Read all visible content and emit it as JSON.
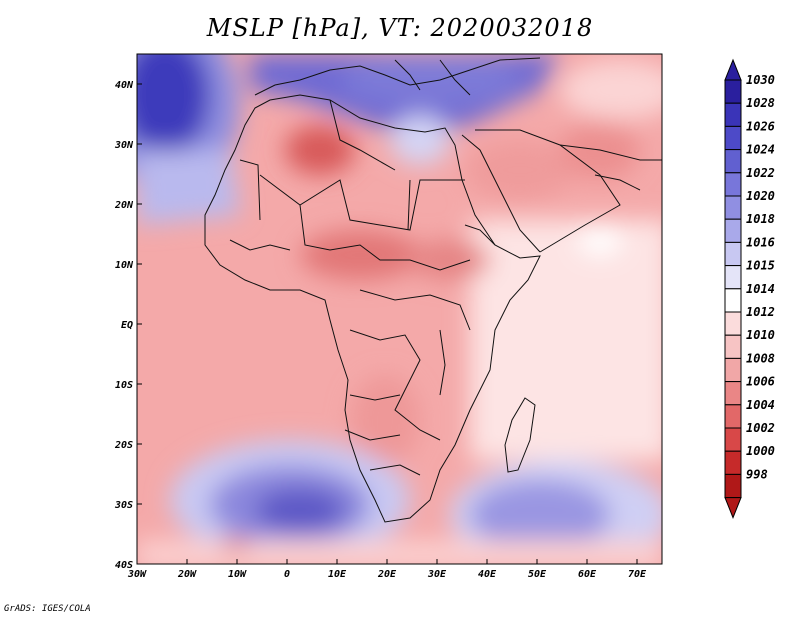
{
  "title": "MSLP [hPa], VT: 2020032018",
  "credit": "GrADS: IGES/COLA",
  "map": {
    "variable": "MSLP",
    "units": "hPa",
    "valid_time": "2020032018",
    "lon_range": [
      -30,
      75
    ],
    "lat_range": [
      -40,
      45
    ],
    "x_ticks": [
      "30W",
      "20W",
      "10W",
      "0",
      "10E",
      "20E",
      "30E",
      "40E",
      "50E",
      "60E",
      "70E"
    ],
    "y_ticks": [
      "40N",
      "30N",
      "20N",
      "10N",
      "EQ",
      "10S",
      "20S",
      "30S",
      "40S"
    ]
  },
  "colorbar": {
    "labels": [
      "1030",
      "1028",
      "1026",
      "1024",
      "1022",
      "1020",
      "1018",
      "1016",
      "1015",
      "1014",
      "1012",
      "1010",
      "1008",
      "1006",
      "1004",
      "1002",
      "1000",
      "998"
    ],
    "colors": [
      "#2a1f9e",
      "#3a34b8",
      "#4d4ac8",
      "#6160d0",
      "#7876da",
      "#908fe2",
      "#a9a9ea",
      "#c8c8f2",
      "#e4e4f8",
      "#ffffff",
      "#fbdcdc",
      "#f7c4c4",
      "#f1a7a7",
      "#ea8686",
      "#e26868",
      "#d84848",
      "#c62a2a",
      "#b01818"
    ]
  },
  "colors": {
    "land_border": "#111111",
    "background": "#ffffff"
  }
}
